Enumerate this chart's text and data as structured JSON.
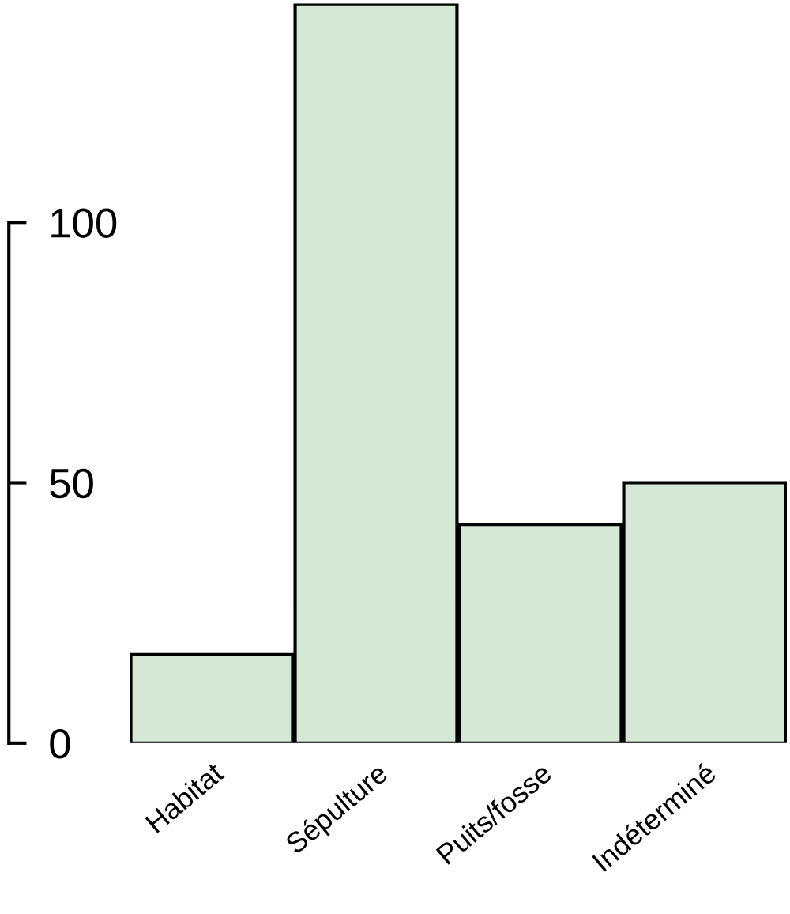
{
  "chart_data": {
    "type": "bar",
    "categories": [
      "Habitat",
      "Sépulture",
      "Puits/fosse",
      "Indéterminé"
    ],
    "values": [
      17,
      142,
      42,
      50
    ],
    "color": "#d5e8d5",
    "ylim": [
      0,
      142
    ],
    "yticks": [
      0,
      50,
      100
    ],
    "grid": false,
    "legend": false
  }
}
